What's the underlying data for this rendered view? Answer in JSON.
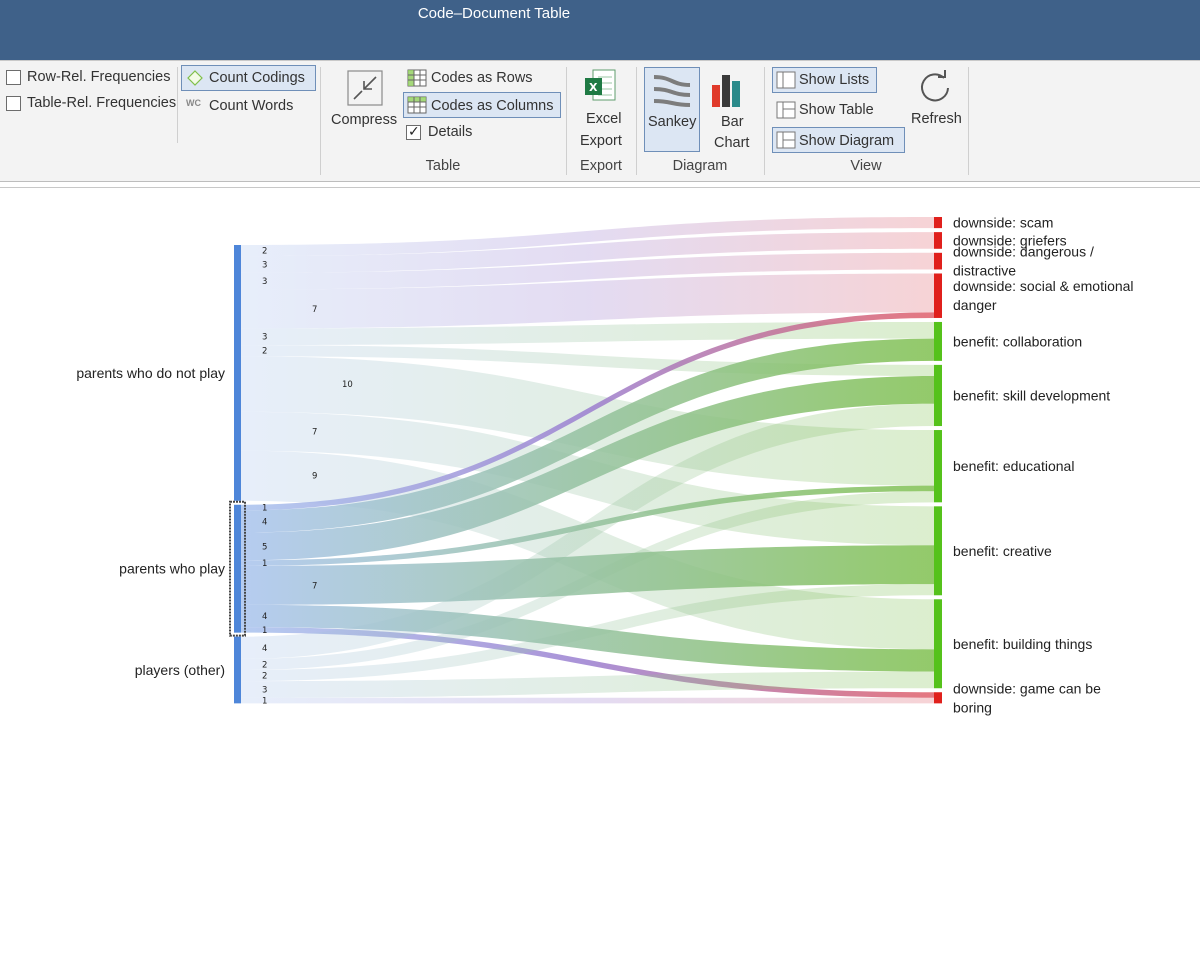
{
  "window": {
    "title": "Code–Document Table"
  },
  "ribbon": {
    "row_rel_label": "Row-Rel. Frequencies",
    "table_rel_label": "Table-Rel. Frequencies",
    "count_codings_label": "Count Codings",
    "count_words_prefix": "WC",
    "count_words_label": "Count Words",
    "compress_label": "Compress",
    "codes_rows_label": "Codes as Rows",
    "codes_cols_label": "Codes as Columns",
    "details_label": "Details",
    "table_group": "Table",
    "excel_label_1": "Excel",
    "excel_label_2": "Export",
    "export_group": "Export",
    "sankey_label": "Sankey",
    "bar_label_1": "Bar",
    "bar_label_2": "Chart",
    "diagram_group": "Diagram",
    "show_lists_label": "Show Lists",
    "show_table_label": "Show Table",
    "show_diagram_label": "Show Diagram",
    "view_group": "View",
    "refresh_label": "Refresh"
  },
  "chart_data": {
    "type": "sankey",
    "sources": [
      {
        "name": "parents who do not play"
      },
      {
        "name": "parents who play"
      },
      {
        "name": "players (other)"
      }
    ],
    "targets": [
      {
        "name": "downside: scam",
        "lines": [
          "downside: scam"
        ],
        "kind": "downside"
      },
      {
        "name": "downside: griefers",
        "lines": [
          "downside: griefers"
        ],
        "kind": "downside"
      },
      {
        "name": "downside: dangerous / distractive",
        "lines": [
          "downside: dangerous /",
          "distractive"
        ],
        "kind": "downside"
      },
      {
        "name": "downside: social & emotional danger",
        "lines": [
          "downside: social & emotional",
          "danger"
        ],
        "kind": "downside"
      },
      {
        "name": "benefit: collaboration",
        "lines": [
          "benefit: collaboration"
        ],
        "kind": "benefit"
      },
      {
        "name": "benefit: skill development",
        "lines": [
          "benefit: skill development"
        ],
        "kind": "benefit"
      },
      {
        "name": "benefit: educational",
        "lines": [
          "benefit: educational"
        ],
        "kind": "benefit"
      },
      {
        "name": "benefit: creative",
        "lines": [
          "benefit: creative"
        ],
        "kind": "benefit"
      },
      {
        "name": "benefit: building things",
        "lines": [
          "benefit: building things"
        ],
        "kind": "benefit"
      },
      {
        "name": "downside: game can be boring",
        "lines": [
          "downside: game can be",
          "boring"
        ],
        "kind": "downside"
      }
    ],
    "links": [
      {
        "source": 0,
        "target": 0,
        "value": 2
      },
      {
        "source": 0,
        "target": 1,
        "value": 3
      },
      {
        "source": 0,
        "target": 2,
        "value": 3
      },
      {
        "source": 0,
        "target": 3,
        "value": 7
      },
      {
        "source": 0,
        "target": 4,
        "value": 3
      },
      {
        "source": 0,
        "target": 5,
        "value": 2
      },
      {
        "source": 0,
        "target": 6,
        "value": 10
      },
      {
        "source": 0,
        "target": 7,
        "value": 7
      },
      {
        "source": 0,
        "target": 8,
        "value": 9
      },
      {
        "source": 1,
        "target": 3,
        "value": 1
      },
      {
        "source": 1,
        "target": 4,
        "value": 4
      },
      {
        "source": 1,
        "target": 5,
        "value": 5
      },
      {
        "source": 1,
        "target": 6,
        "value": 1
      },
      {
        "source": 1,
        "target": 7,
        "value": 7
      },
      {
        "source": 1,
        "target": 8,
        "value": 4
      },
      {
        "source": 1,
        "target": 9,
        "value": 1
      },
      {
        "source": 2,
        "target": 5,
        "value": 4
      },
      {
        "source": 2,
        "target": 6,
        "value": 2
      },
      {
        "source": 2,
        "target": 7,
        "value": 2
      },
      {
        "source": 2,
        "target": 8,
        "value": 3
      },
      {
        "source": 2,
        "target": 9,
        "value": 1
      }
    ],
    "colors": {
      "source_bar": "#4e86d9",
      "benefit_bar": "#55c21b",
      "downside_bar": "#e0201c",
      "flow_left": "#a9c3ee",
      "flow_benefit": "#80c050",
      "flow_downside": "#e0606a",
      "flow_purple": "#9b7fd0"
    },
    "selected_source": 1
  }
}
